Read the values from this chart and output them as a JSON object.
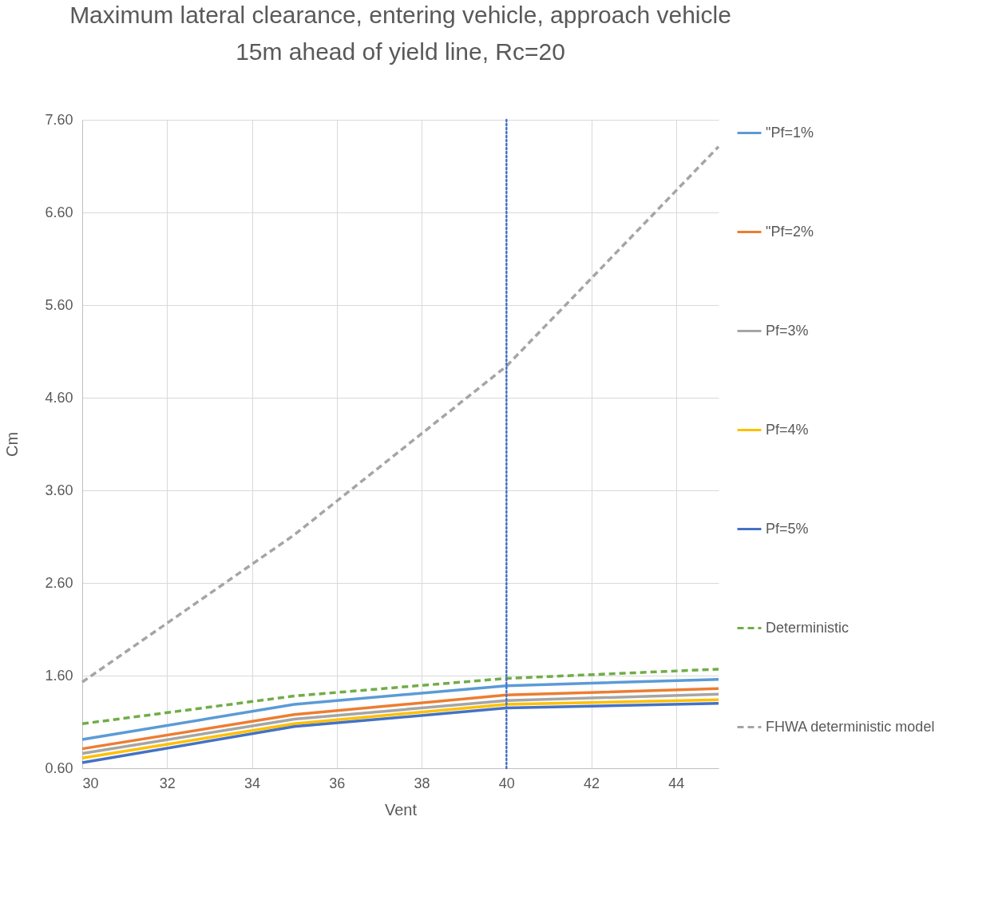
{
  "chart_data": {
    "type": "line",
    "title": "Maximum lateral clearance, entering vehicle, approach vehicle\n15m ahead of yield line, Rc=20",
    "xlabel": "Vent",
    "ylabel": "Cm",
    "x": [
      30,
      35,
      40,
      45
    ],
    "series": [
      {
        "name": "\"Pf=1%",
        "color": "#5b9bd5",
        "line_style": "solid",
        "values": [
          0.91,
          1.29,
          1.49,
          1.56
        ]
      },
      {
        "name": "\"Pf=2%",
        "color": "#ed7d31",
        "line_style": "solid",
        "values": [
          0.81,
          1.18,
          1.39,
          1.46
        ]
      },
      {
        "name": "Pf=3%",
        "color": "#a5a5a5",
        "line_style": "solid",
        "values": [
          0.76,
          1.13,
          1.33,
          1.4
        ]
      },
      {
        "name": "Pf=4%",
        "color": "#ffc000",
        "line_style": "solid",
        "values": [
          0.71,
          1.08,
          1.29,
          1.34
        ]
      },
      {
        "name": "Pf=5%",
        "color": "#4472c4",
        "line_style": "solid",
        "values": [
          0.66,
          1.05,
          1.25,
          1.3
        ]
      },
      {
        "name": "Deterministic",
        "color": "#70ad47",
        "line_style": "dashed",
        "values": [
          1.08,
          1.38,
          1.57,
          1.67
        ]
      },
      {
        "name": "FHWA deterministic model",
        "color": "#a5a5a5",
        "line_style": "dashed",
        "values": [
          1.53,
          3.12,
          4.94,
          7.31
        ]
      }
    ],
    "xlim": [
      30,
      45
    ],
    "xticks": [
      30,
      32,
      34,
      36,
      38,
      40,
      42,
      44
    ],
    "ylim": [
      0.6,
      7.6
    ],
    "yticks": [
      {
        "value": 0.6,
        "label": "0.60"
      },
      {
        "value": 1.6,
        "label": "1.60"
      },
      {
        "value": 2.6,
        "label": "2.60"
      },
      {
        "value": 3.6,
        "label": "3.60"
      },
      {
        "value": 4.6,
        "label": "4.60"
      },
      {
        "value": 5.6,
        "label": "5.60"
      },
      {
        "value": 6.6,
        "label": "6.60"
      },
      {
        "value": 7.6,
        "label": "7.60"
      }
    ],
    "ref_lines": [
      {
        "axis": "x",
        "value": 40,
        "color": "#4472c4",
        "line_style": "dotted"
      }
    ],
    "grid": true,
    "legend": "right",
    "marker": "none"
  }
}
